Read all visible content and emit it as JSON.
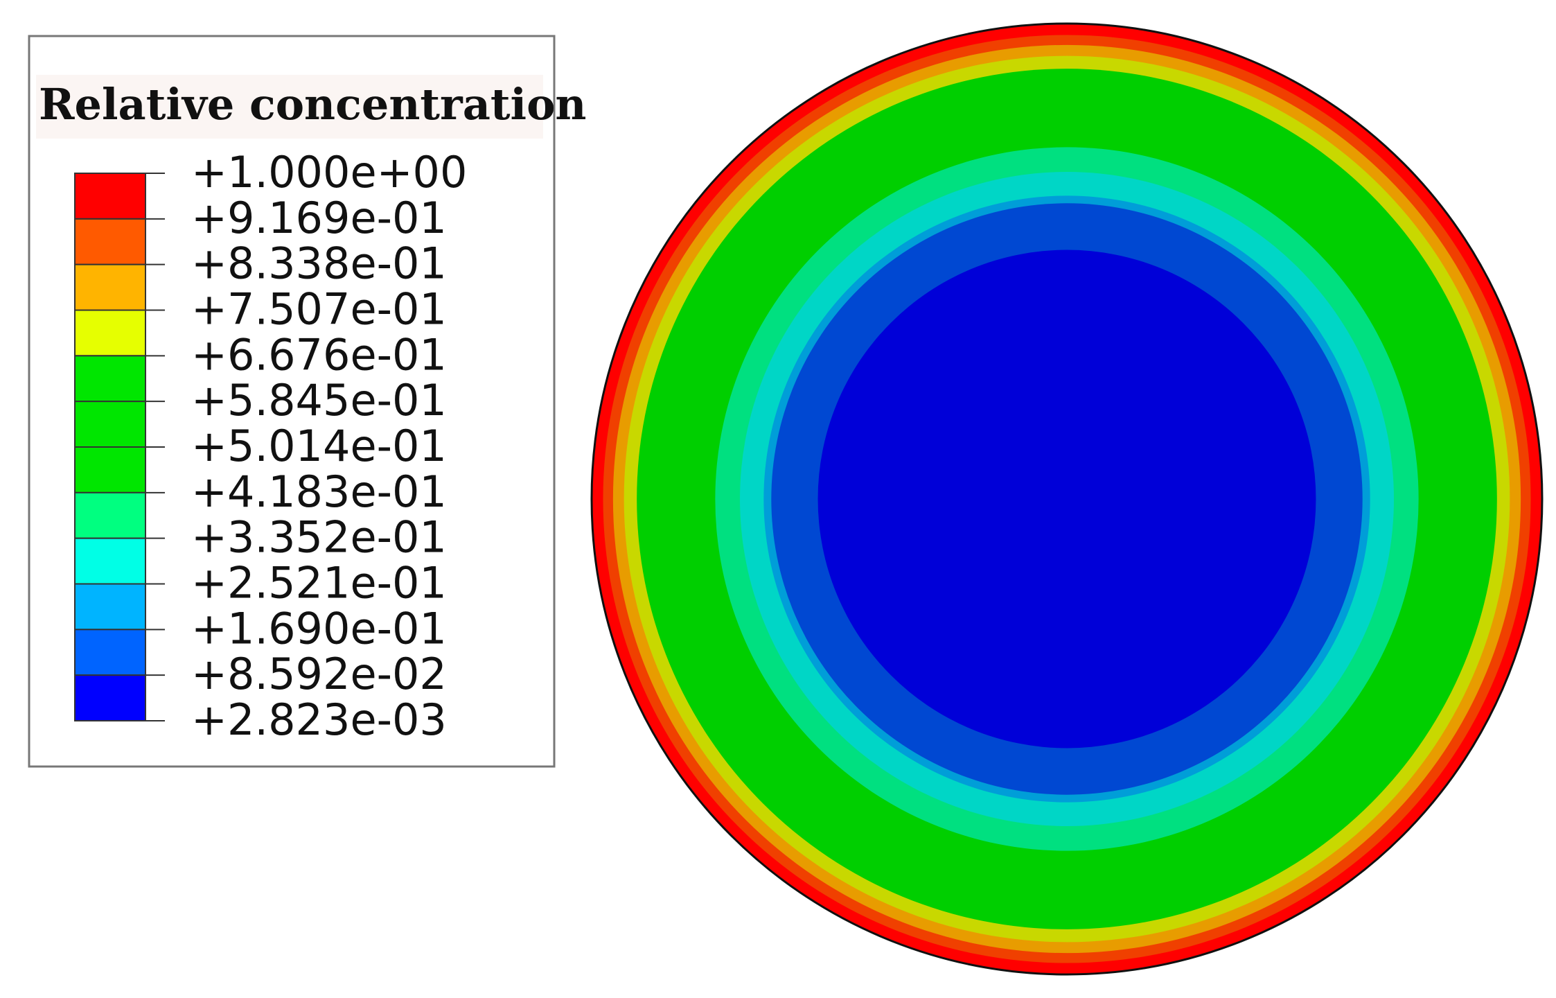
{
  "chart_data": {
    "type": "heatmap",
    "title": "Relative concentration",
    "tick_labels": [
      "+1.000e+00",
      "+9.169e-01",
      "+8.338e-01",
      "+7.507e-01",
      "+6.676e-01",
      "+5.845e-01",
      "+5.014e-01",
      "+4.183e-01",
      "+3.352e-01",
      "+2.521e-01",
      "+1.690e-01",
      "+8.592e-02",
      "+2.823e-03"
    ],
    "levels": [
      1.0,
      0.9169,
      0.8338,
      0.7507,
      0.6676,
      0.5845,
      0.5014,
      0.4183,
      0.3352,
      0.2521,
      0.169,
      0.08592,
      0.002823
    ],
    "band_colors": [
      "#ff0000",
      "#ff5a00",
      "#ffb400",
      "#e6ff00",
      "#00e600",
      "#00e600",
      "#00e600",
      "#00ff80",
      "#00ffe6",
      "#00b4ff",
      "#0064ff",
      "#0000ff"
    ],
    "field": {
      "shape": "circle",
      "rings_outer_to_inner": [
        {
          "color": "#ff0000",
          "r_frac": 1.0
        },
        {
          "color": "#f04000",
          "r_frac": 0.976
        },
        {
          "color": "#e89c00",
          "r_frac": 0.955
        },
        {
          "color": "#c8d800",
          "r_frac": 0.932
        },
        {
          "color": "#00cf00",
          "r_frac": 0.905
        },
        {
          "color": "#00e080",
          "r_frac": 0.74
        },
        {
          "color": "#00d6c6",
          "r_frac": 0.688
        },
        {
          "color": "#009ed8",
          "r_frac": 0.638
        },
        {
          "color": "#0048d2",
          "r_frac": 0.622
        },
        {
          "color": "#0000d8",
          "r_frac": 0.524
        }
      ]
    }
  }
}
